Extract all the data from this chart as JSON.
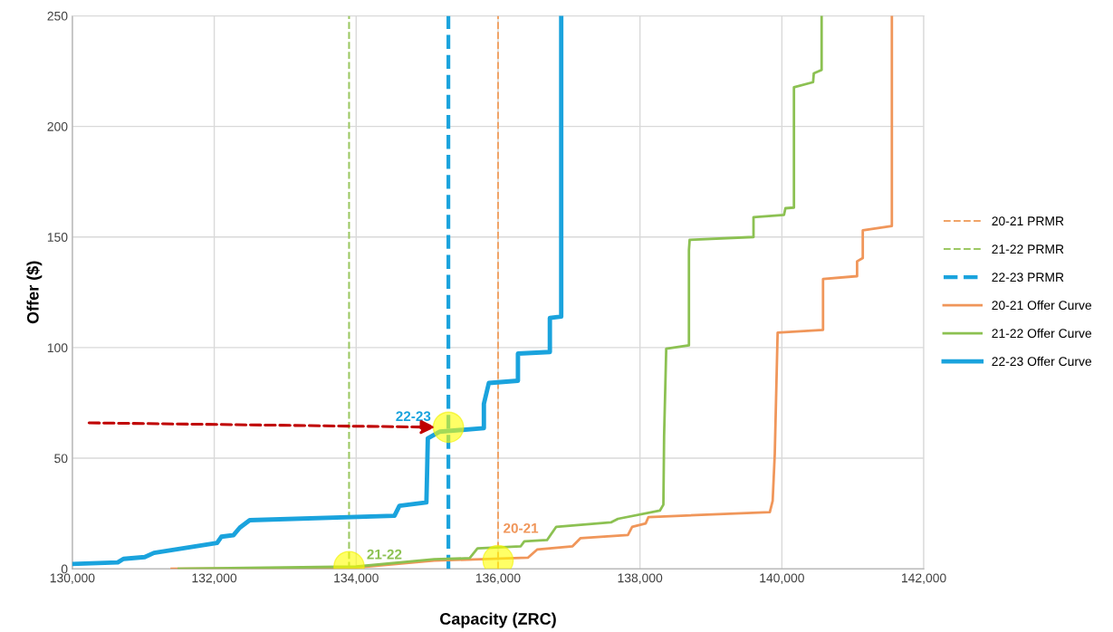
{
  "chart_data": {
    "type": "line",
    "xlabel": "Capacity (ZRC)",
    "ylabel": "Offer ($)",
    "xlim": [
      130000,
      142000
    ],
    "xticks": [
      {
        "value": 130000,
        "label": "130,000"
      },
      {
        "value": 132000,
        "label": "132,000"
      },
      {
        "value": 134000,
        "label": "134,000"
      },
      {
        "value": 136000,
        "label": "136,000"
      },
      {
        "value": 138000,
        "label": "138,000"
      },
      {
        "value": 140000,
        "label": "140,000"
      },
      {
        "value": 142000,
        "label": "142,000"
      }
    ],
    "ylim": [
      0,
      250
    ],
    "yticks": [
      0,
      50,
      100,
      150,
      200,
      250
    ],
    "grid": true,
    "legend": "right",
    "marker": "none",
    "line_style": "solid",
    "series": [
      {
        "name": "20-21 PRMR",
        "color": "#f0a468",
        "line_style": "dashed",
        "x": [
          136000,
          136000
        ],
        "values": [
          0,
          250
        ]
      },
      {
        "name": "21-22 PRMR",
        "color": "#9cc863",
        "line_style": "dashed",
        "x": [
          133900,
          133900
        ],
        "values": [
          0,
          250
        ]
      },
      {
        "name": "22-23 PRMR",
        "color": "#1aa3dd",
        "line_style": "dashed",
        "x": [
          135300,
          135300
        ],
        "values": [
          0,
          250
        ]
      },
      {
        "name": "20-21 Offer Curve",
        "color": "#f0965a",
        "x": [
          131400,
          134000,
          135100,
          136420,
          136550,
          137050,
          137160,
          137830,
          137890,
          138080,
          138120,
          139830,
          139870,
          139900,
          139940,
          140580,
          140580,
          141060,
          141060,
          141140,
          141140,
          141550,
          141550
        ],
        "values": [
          0,
          0.5,
          3.7,
          5,
          8.7,
          10.2,
          13.8,
          15.3,
          19,
          20.5,
          23.4,
          25.6,
          30.7,
          52,
          106.8,
          108,
          131,
          132.3,
          139,
          140.5,
          153,
          155,
          250
        ]
      },
      {
        "name": "21-22 Offer Curve",
        "color": "#8cc152",
        "x": [
          131500,
          134000,
          135100,
          135600,
          135710,
          136320,
          136370,
          136690,
          136820,
          137590,
          137690,
          138280,
          138330,
          138340,
          138370,
          138690,
          138690,
          138700,
          139600,
          139600,
          140030,
          140050,
          140170,
          140170,
          140440,
          140450,
          140560,
          140560
        ],
        "values": [
          0,
          1,
          4.3,
          4.8,
          9.2,
          10.2,
          12.4,
          13,
          19,
          21,
          22.6,
          26.3,
          29,
          60,
          99.5,
          101,
          144,
          148.7,
          150,
          159,
          160,
          163,
          163.3,
          217.7,
          220,
          224,
          225.5,
          250
        ]
      },
      {
        "name": "22-23 Offer Curve",
        "color": "#1aa3dd",
        "x": [
          130000,
          130640,
          130720,
          131020,
          131150,
          132040,
          132100,
          132270,
          132360,
          132500,
          134540,
          134610,
          134990,
          135000,
          135010,
          135180,
          135800,
          135800,
          135870,
          136280,
          136280,
          136730,
          136730,
          136890,
          136890
        ],
        "values": [
          2.2,
          2.9,
          4.5,
          5.3,
          7.2,
          11.7,
          14.5,
          15.2,
          18.6,
          22,
          24,
          28.5,
          30,
          44,
          59,
          62,
          63.6,
          74.6,
          84,
          85,
          97.3,
          98,
          113.4,
          114,
          250
        ]
      }
    ],
    "annotations": [
      {
        "text": "22-23",
        "x": 135300,
        "y": 64
      },
      {
        "text": "21-22",
        "x": 133900,
        "y": 1
      },
      {
        "text": "20-21",
        "x": 136000,
        "y": 3.7
      }
    ]
  }
}
